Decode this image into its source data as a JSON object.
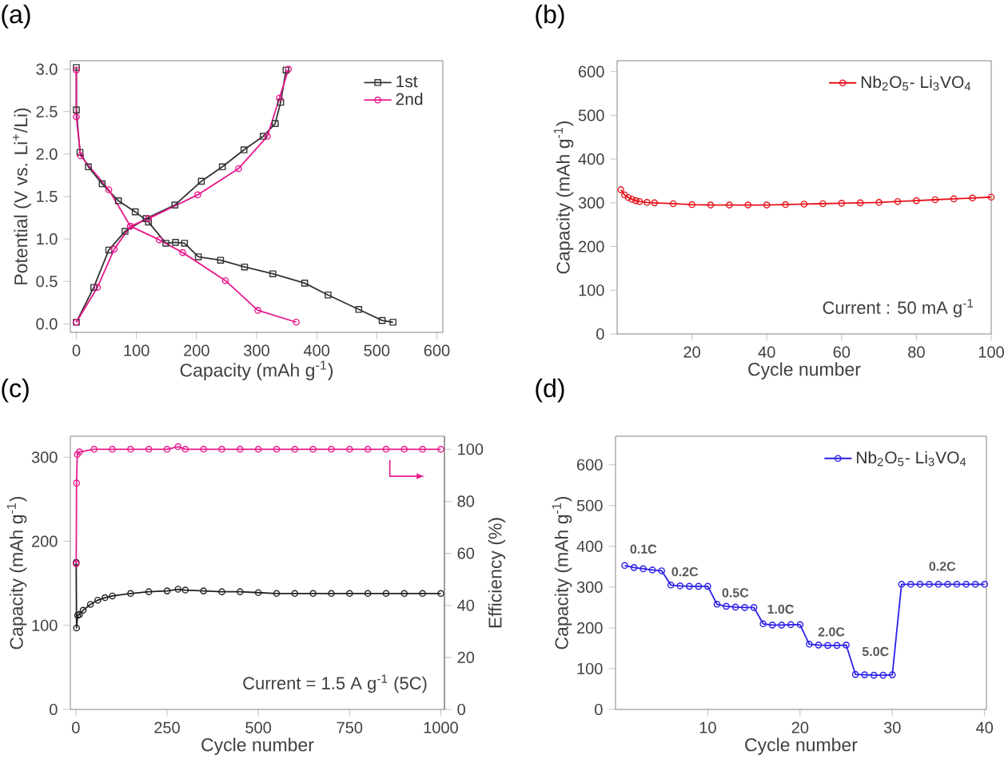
{
  "chart_data": [
    {
      "type": "line",
      "title": "(a)",
      "xlabel": "Capacity (mAh g$^{-1}$)",
      "ylabel": "Potential (V vs. Li$^{+}$/Li)",
      "xlim": [
        -10,
        610
      ],
      "ylim": [
        -0.1,
        3.1
      ],
      "xticks": [
        0,
        100,
        200,
        300,
        400,
        500,
        600
      ],
      "yticks": [
        {
          "value": 0,
          "label": "0.0"
        },
        {
          "value": 0.5,
          "label": "0.5"
        },
        {
          "value": 1,
          "label": "1.0"
        },
        {
          "value": 1.5,
          "label": "1.5"
        },
        {
          "value": 2,
          "label": "2.0"
        },
        {
          "value": 2.5,
          "label": "2.5"
        },
        {
          "value": 3,
          "label": "3.0"
        }
      ],
      "legend": "top right",
      "series": [
        {
          "name": "1st",
          "color": "#333333",
          "marker": "square",
          "x": [
            0,
            0,
            6,
            20,
            43,
            70,
            98,
            120,
            149,
            165,
            180,
            203,
            240,
            280,
            327,
            380,
            419,
            470,
            509,
            527,
            null,
            0,
            29,
            54,
            81,
            116,
            164,
            208,
            243,
            279,
            311,
            331,
            340,
            349
          ],
          "values": [
            3.02,
            2.52,
            2.02,
            1.85,
            1.65,
            1.45,
            1.32,
            1.2,
            0.95,
            0.96,
            0.95,
            0.79,
            0.75,
            0.67,
            0.59,
            0.48,
            0.34,
            0.17,
            0.04,
            0.02,
            null,
            0.02,
            0.43,
            0.87,
            1.09,
            1.24,
            1.4,
            1.68,
            1.85,
            2.05,
            2.21,
            2.36,
            2.61,
            2.99
          ]
        },
        {
          "name": "2nd",
          "color": "#e8198b",
          "marker": "circle",
          "x": [
            0,
            0,
            7,
            54,
            90,
            138,
            177,
            248,
            302,
            366,
            null,
            0,
            35,
            63,
            90,
            120,
            202,
            270,
            318,
            338,
            353
          ],
          "values": [
            2.99,
            2.44,
            1.98,
            1.58,
            1.15,
            0.99,
            0.84,
            0.51,
            0.16,
            0.02,
            null,
            0.02,
            0.43,
            0.88,
            1.15,
            1.24,
            1.52,
            1.83,
            2.21,
            2.66,
            3.0
          ]
        }
      ]
    },
    {
      "type": "line",
      "title": "(b)",
      "xlabel": "Cycle number",
      "ylabel": "Capacity (mAh g$^{-1}$)",
      "xlim": [
        0,
        100
      ],
      "ylim": [
        0,
        625
      ],
      "xticks": [
        20,
        40,
        60,
        80,
        100
      ],
      "yticks": [
        0,
        100,
        200,
        300,
        400,
        500,
        600
      ],
      "marker": "circle",
      "legend": "top right",
      "annotations": [
        "Current : 50 mA g$^{-1}$"
      ],
      "series": [
        {
          "name": "Nb$_{2}$O$_{5}$- Li$_{3}$VO$_{4}$",
          "color": "#e8101a",
          "x": [
            1,
            2,
            3,
            4,
            5,
            6,
            8,
            10,
            15,
            20,
            25,
            30,
            35,
            40,
            45,
            50,
            55,
            60,
            65,
            70,
            75,
            80,
            85,
            90,
            95,
            100
          ],
          "values": [
            330,
            318,
            312,
            308,
            305,
            303,
            301,
            300,
            298,
            296,
            295,
            295,
            295,
            295,
            296,
            297,
            298,
            299,
            300,
            301,
            303,
            305,
            307,
            309,
            311,
            313
          ]
        }
      ]
    },
    {
      "type": "line",
      "title": "(c)",
      "xlabel": "Cycle number",
      "ylabel": "Capacity (mAh g$^{-1}$)",
      "y2label": "Efficiency (%)",
      "xlim": [
        -15,
        1010
      ],
      "ylim": [
        0,
        325
      ],
      "y2lim": [
        0,
        105
      ],
      "xticks": [
        0,
        250,
        500,
        750,
        1000
      ],
      "yticks": [
        0,
        100,
        200,
        300
      ],
      "y2ticks": [
        0,
        20,
        40,
        60,
        80,
        100
      ],
      "marker": "circle",
      "annotations": [
        "Current = 1.5 A g$^{-1}$ (5C)"
      ],
      "series": [
        {
          "color": "#222222",
          "x": [
            1,
            2,
            5,
            10,
            20,
            40,
            60,
            80,
            100,
            150,
            200,
            250,
            280,
            300,
            350,
            400,
            450,
            500,
            550,
            600,
            650,
            700,
            750,
            800,
            850,
            900,
            950,
            1000
          ],
          "values": [
            175,
            97,
            112,
            113,
            118,
            125,
            130,
            133,
            135,
            138,
            140,
            141,
            143,
            142,
            141,
            140,
            140,
            139,
            138,
            138,
            138,
            138,
            138,
            138,
            138,
            138,
            138,
            138
          ]
        },
        {
          "color": "#e8198b",
          "axis": "y2",
          "x": [
            1,
            2,
            4,
            10,
            50,
            100,
            150,
            200,
            250,
            280,
            300,
            350,
            400,
            450,
            500,
            550,
            600,
            650,
            700,
            750,
            800,
            850,
            900,
            950,
            1000
          ],
          "values": [
            56,
            87,
            98,
            99,
            100,
            100,
            100,
            100,
            100,
            101,
            100,
            100,
            100,
            100,
            100,
            100,
            100,
            100,
            100,
            100,
            100,
            100,
            100,
            100,
            100
          ]
        }
      ]
    },
    {
      "type": "line",
      "title": "(d)",
      "xlabel": "Cycle number",
      "ylabel": "Capacity (mAh g$^{-1}$)",
      "xlim": [
        0,
        40.2
      ],
      "ylim": [
        0,
        670
      ],
      "xticks": [
        10,
        20,
        30,
        40
      ],
      "yticks": [
        0,
        100,
        200,
        300,
        400,
        500,
        600
      ],
      "marker": "circle",
      "legend": "top right",
      "annotations": [
        "0.1C",
        "0.2C",
        "0.5C",
        "1.0C",
        "2.0C",
        "5.0C",
        "0.2C"
      ],
      "series": [
        {
          "name": "Nb$_{2}$O$_{5}$- Li$_{3}$VO$_{4}$",
          "color": "#2a1ee8",
          "x": [
            1,
            2,
            3,
            4,
            5,
            6,
            7,
            8,
            9,
            10,
            11,
            12,
            13,
            14,
            15,
            16,
            17,
            18,
            19,
            20,
            21,
            22,
            23,
            24,
            25,
            26,
            27,
            28,
            29,
            30,
            31,
            32,
            33,
            34,
            35,
            36,
            37,
            38,
            39,
            40
          ],
          "values": [
            353,
            348,
            345,
            342,
            340,
            305,
            303,
            302,
            302,
            302,
            258,
            253,
            251,
            250,
            250,
            210,
            207,
            207,
            208,
            208,
            160,
            158,
            157,
            157,
            158,
            86,
            85,
            84,
            84,
            85,
            307,
            307,
            307,
            307,
            307,
            307,
            307,
            307,
            307,
            307
          ]
        }
      ]
    }
  ]
}
